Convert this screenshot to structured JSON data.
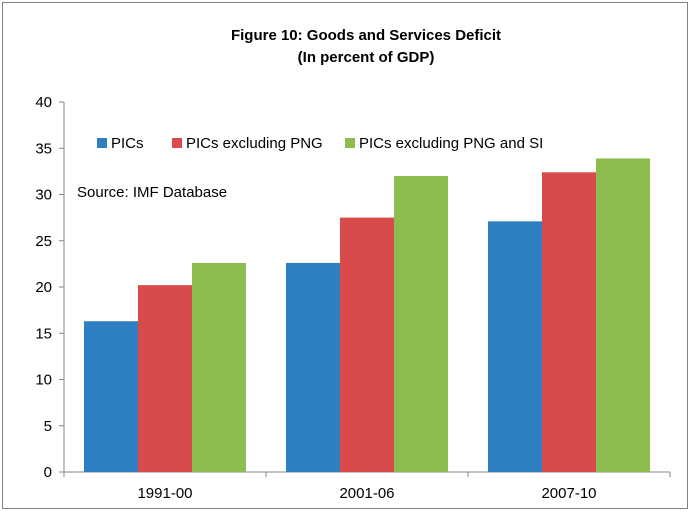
{
  "chart_data": {
    "type": "bar",
    "title": "Figure 10: Goods and Services Deficit",
    "subtitle": "(In percent of GDP)",
    "categories": [
      "1991-00",
      "2001-06",
      "2007-10"
    ],
    "series": [
      {
        "name": "PICs",
        "values": [
          16.3,
          22.6,
          27.1
        ],
        "color": "#2e7fc2"
      },
      {
        "name": "PICs excluding PNG",
        "values": [
          20.2,
          27.5,
          32.4
        ],
        "color": "#d94a4a"
      },
      {
        "name": "PICs excluding PNG and SI",
        "values": [
          22.6,
          32.0,
          33.9
        ],
        "color": "#8cbd4e"
      }
    ],
    "ylim": [
      0,
      40
    ],
    "yticks": [
      0,
      5,
      10,
      15,
      20,
      25,
      30,
      35,
      40
    ],
    "grid": false,
    "legend": "top-left",
    "annotation": "Source: IMF Database"
  }
}
